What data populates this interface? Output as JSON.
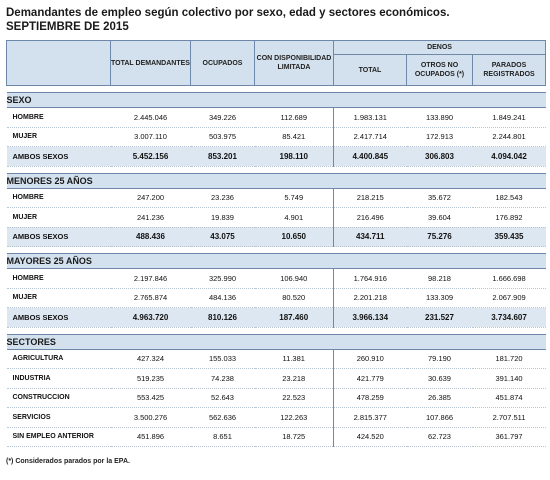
{
  "title": {
    "line1": "Demandantes de empleo según colectivo por sexo, edad y sectores económicos.",
    "line2": "SEPTIEMBRE DE 2015"
  },
  "headers": {
    "total_demandantes": "TOTAL DEMANDANTES",
    "ocupados": "OCUPADOS",
    "con_disponibilidad": "CON DISPONIBILIDAD LIMITADA",
    "denos": "DENOS",
    "total": "TOTAL",
    "otros_no_ocupados": "OTROS NO OCUPADOS (*)",
    "parados_registrados": "PARADOS REGISTRADOS"
  },
  "sections": [
    {
      "name": "SEXO",
      "rows": [
        {
          "label": "HOMBRE",
          "values": [
            "2.445.046",
            "349.226",
            "112.689",
            "1.983.131",
            "133.890",
            "1.849.241"
          ]
        },
        {
          "label": "MUJER",
          "values": [
            "3.007.110",
            "503.975",
            "85.421",
            "2.417.714",
            "172.913",
            "2.244.801"
          ]
        },
        {
          "label": "AMBOS SEXOS",
          "values": [
            "5.452.156",
            "853.201",
            "198.110",
            "4.400.845",
            "306.803",
            "4.094.042"
          ],
          "total": true
        }
      ]
    },
    {
      "name": "MENORES 25 AÑOS",
      "rows": [
        {
          "label": "HOMBRE",
          "values": [
            "247.200",
            "23.236",
            "5.749",
            "218.215",
            "35.672",
            "182.543"
          ]
        },
        {
          "label": "MUJER",
          "values": [
            "241.236",
            "19.839",
            "4.901",
            "216.496",
            "39.604",
            "176.892"
          ]
        },
        {
          "label": "AMBOS SEXOS",
          "values": [
            "488.436",
            "43.075",
            "10.650",
            "434.711",
            "75.276",
            "359.435"
          ],
          "total": true
        }
      ]
    },
    {
      "name": "MAYORES 25 AÑOS",
      "rows": [
        {
          "label": "HOMBRE",
          "values": [
            "2.197.846",
            "325.990",
            "106.940",
            "1.764.916",
            "98.218",
            "1.666.698"
          ]
        },
        {
          "label": "MUJER",
          "values": [
            "2.765.874",
            "484.136",
            "80.520",
            "2.201.218",
            "133.309",
            "2.067.909"
          ]
        },
        {
          "label": "AMBOS SEXOS",
          "values": [
            "4.963.720",
            "810.126",
            "187.460",
            "3.966.134",
            "231.527",
            "3.734.607"
          ],
          "total": true
        }
      ]
    },
    {
      "name": "SECTORES",
      "rows": [
        {
          "label": "AGRICULTURA",
          "values": [
            "427.324",
            "155.033",
            "11.381",
            "260.910",
            "79.190",
            "181.720"
          ]
        },
        {
          "label": "INDUSTRIA",
          "values": [
            "519.235",
            "74.238",
            "23.218",
            "421.779",
            "30.639",
            "391.140"
          ]
        },
        {
          "label": "CONSTRUCCION",
          "values": [
            "553.425",
            "52.643",
            "22.523",
            "478.259",
            "26.385",
            "451.874"
          ]
        },
        {
          "label": "SERVICIOS",
          "values": [
            "3.500.276",
            "562.636",
            "122.263",
            "2.815.377",
            "107.866",
            "2.707.511"
          ]
        },
        {
          "label": "SIN EMPLEO ANTERIOR",
          "values": [
            "451.896",
            "8.651",
            "18.725",
            "424.520",
            "62.723",
            "361.797"
          ]
        }
      ]
    }
  ],
  "footnote": "(*) Considerados parados por la EPA.",
  "colors": {
    "header_bg": "#d3e1ee",
    "total_row_bg": "#dde7f1",
    "border": "#6d88a8"
  }
}
